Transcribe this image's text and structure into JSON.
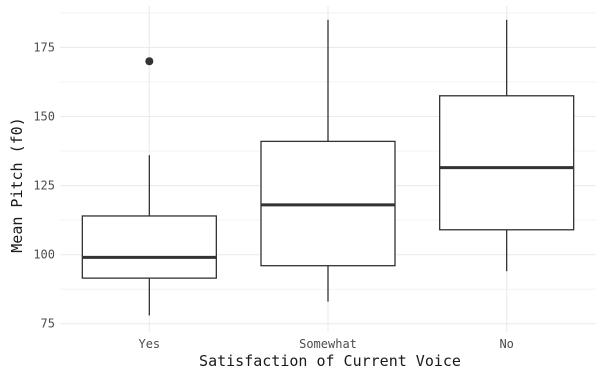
{
  "chart_data": {
    "type": "boxplot",
    "title": "",
    "xlabel": "Satisfaction of Current Voice",
    "ylabel": "Mean Pitch (f0)",
    "ylim": [
      72,
      190
    ],
    "yticks": [
      75,
      100,
      125,
      150,
      175
    ],
    "grid": true,
    "categories": [
      "Yes",
      "Somewhat",
      "No"
    ],
    "boxes": [
      {
        "category": "Yes",
        "whisker_low": 78,
        "q1": 91.5,
        "median": 99,
        "q3": 114,
        "whisker_high": 136,
        "outliers": [
          170
        ]
      },
      {
        "category": "Somewhat",
        "whisker_low": 83,
        "q1": 96,
        "median": 118,
        "q3": 141,
        "whisker_high": 185,
        "outliers": []
      },
      {
        "category": "No",
        "whisker_low": 94,
        "q1": 109,
        "median": 131.5,
        "q3": 157.5,
        "whisker_high": 185,
        "outliers": []
      }
    ],
    "colors": {
      "box_line": "#333333",
      "grid": "#ebebeb",
      "box_fill": "#ffffff"
    }
  }
}
